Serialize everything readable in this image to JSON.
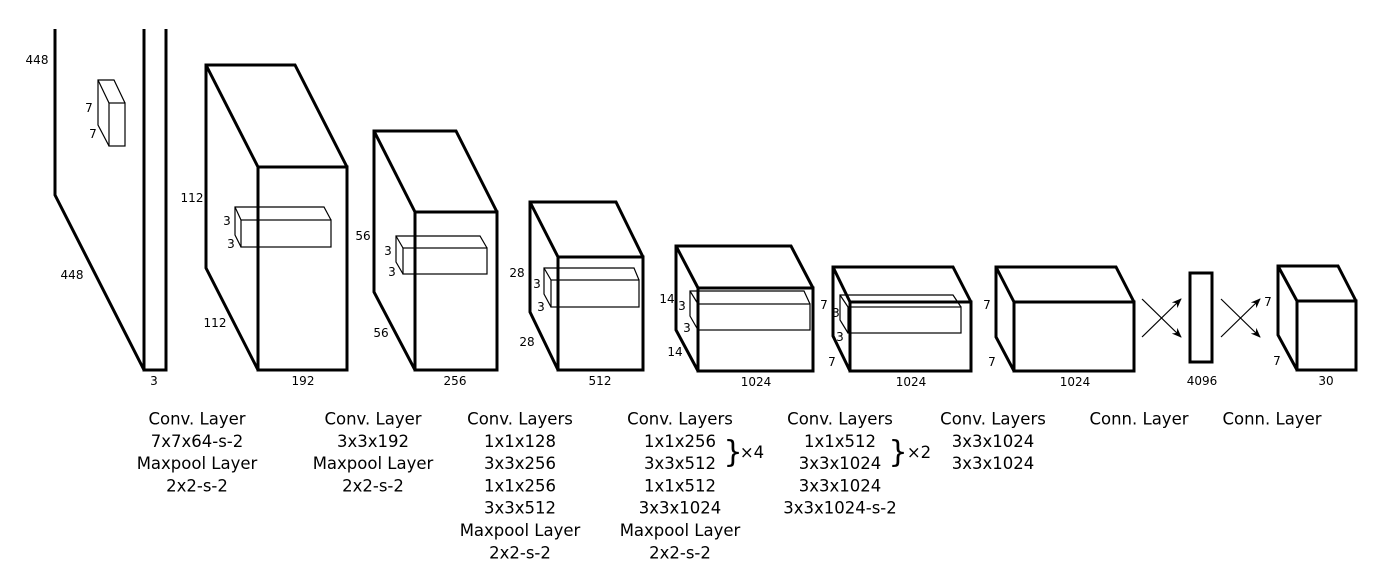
{
  "dimensions": {
    "input": {
      "height": "448",
      "width": "448",
      "depth": "3",
      "kernel_h": "7",
      "kernel_w": "7"
    },
    "block1": {
      "height": "112",
      "width": "112",
      "depth": "192",
      "kernel_h": "3",
      "kernel_w": "3"
    },
    "block2": {
      "height": "56",
      "width": "56",
      "depth": "256",
      "kernel_h": "3",
      "kernel_w": "3"
    },
    "block3": {
      "height": "28",
      "width": "28",
      "depth": "512",
      "kernel_h": "3",
      "kernel_w": "3"
    },
    "block4": {
      "height": "14",
      "width": "14",
      "depth": "1024",
      "kernel_h": "3",
      "kernel_w": "3"
    },
    "block5": {
      "height": "7",
      "width": "7",
      "depth": "1024",
      "kernel_h": "3",
      "kernel_w": "3"
    },
    "block6": {
      "height": "7",
      "width": "7",
      "depth": "1024"
    },
    "fc1": {
      "depth": "4096"
    },
    "output": {
      "height": "7",
      "width": "7",
      "depth": "30"
    }
  },
  "captions": [
    {
      "lines": [
        "Conv. Layer",
        "7x7x64-s-2",
        "Maxpool Layer",
        "2x2-s-2"
      ]
    },
    {
      "lines": [
        "Conv. Layer",
        "3x3x192",
        "Maxpool Layer",
        "2x2-s-2"
      ]
    },
    {
      "lines": [
        "Conv. Layers",
        "1x1x128",
        "3x3x256",
        "1x1x256",
        "3x3x512",
        "Maxpool Layer",
        "2x2-s-2"
      ]
    },
    {
      "lines": [
        "Conv. Layers",
        "1x1x256",
        "3x3x512",
        "1x1x512",
        "3x3x1024",
        "Maxpool Layer",
        "2x2-s-2"
      ],
      "repeat": "×4"
    },
    {
      "lines": [
        "Conv. Layers",
        "1x1x512",
        "3x3x1024",
        "3x3x1024",
        "3x3x1024-s-2"
      ],
      "repeat": "×2"
    },
    {
      "lines": [
        "Conv. Layers",
        "3x3x1024",
        "3x3x1024"
      ]
    },
    {
      "lines": [
        "Conn. Layer"
      ]
    },
    {
      "lines": [
        "Conn. Layer"
      ]
    }
  ]
}
